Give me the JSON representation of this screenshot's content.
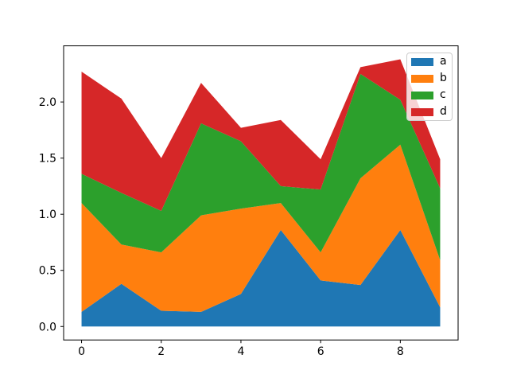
{
  "figure": {
    "background": "#ffffff"
  },
  "chart_data": {
    "type": "area",
    "stacked": true,
    "title": "",
    "xlabel": "",
    "ylabel": "",
    "x": [
      0,
      1,
      2,
      3,
      4,
      5,
      6,
      7,
      8,
      9
    ],
    "series": [
      {
        "name": "a",
        "color": "#1f77b4",
        "values": [
          0.13,
          0.38,
          0.14,
          0.13,
          0.29,
          0.86,
          0.41,
          0.37,
          0.86,
          0.17
        ]
      },
      {
        "name": "b",
        "color": "#ff7f0e",
        "values": [
          0.97,
          0.35,
          0.52,
          0.86,
          0.76,
          0.24,
          0.25,
          0.95,
          0.76,
          0.42
        ]
      },
      {
        "name": "c",
        "color": "#2ca02c",
        "values": [
          0.26,
          0.46,
          0.37,
          0.82,
          0.6,
          0.15,
          0.56,
          0.93,
          0.4,
          0.64
        ]
      },
      {
        "name": "d",
        "color": "#d62728",
        "values": [
          0.91,
          0.84,
          0.47,
          0.36,
          0.12,
          0.59,
          0.27,
          0.06,
          0.36,
          0.26
        ]
      }
    ],
    "xlim": [
      -0.45,
      9.45
    ],
    "ylim": [
      -0.12,
      2.5
    ],
    "xticks": {
      "values": [
        0,
        2,
        4,
        6,
        8
      ],
      "labels": [
        "0",
        "2",
        "4",
        "6",
        "8"
      ]
    },
    "yticks": {
      "values": [
        0,
        0.5,
        1,
        1.5,
        2
      ],
      "labels": [
        "0.0",
        "0.5",
        "1.0",
        "1.5",
        "2.0"
      ]
    },
    "grid": false,
    "legend": {
      "position": "upper right",
      "entries": [
        "a",
        "b",
        "c",
        "d"
      ]
    }
  },
  "colors": {
    "axes_line": "#000000",
    "tick_label": "#000000",
    "plot_background": "#ffffff",
    "legend_border": "#cccccc"
  }
}
